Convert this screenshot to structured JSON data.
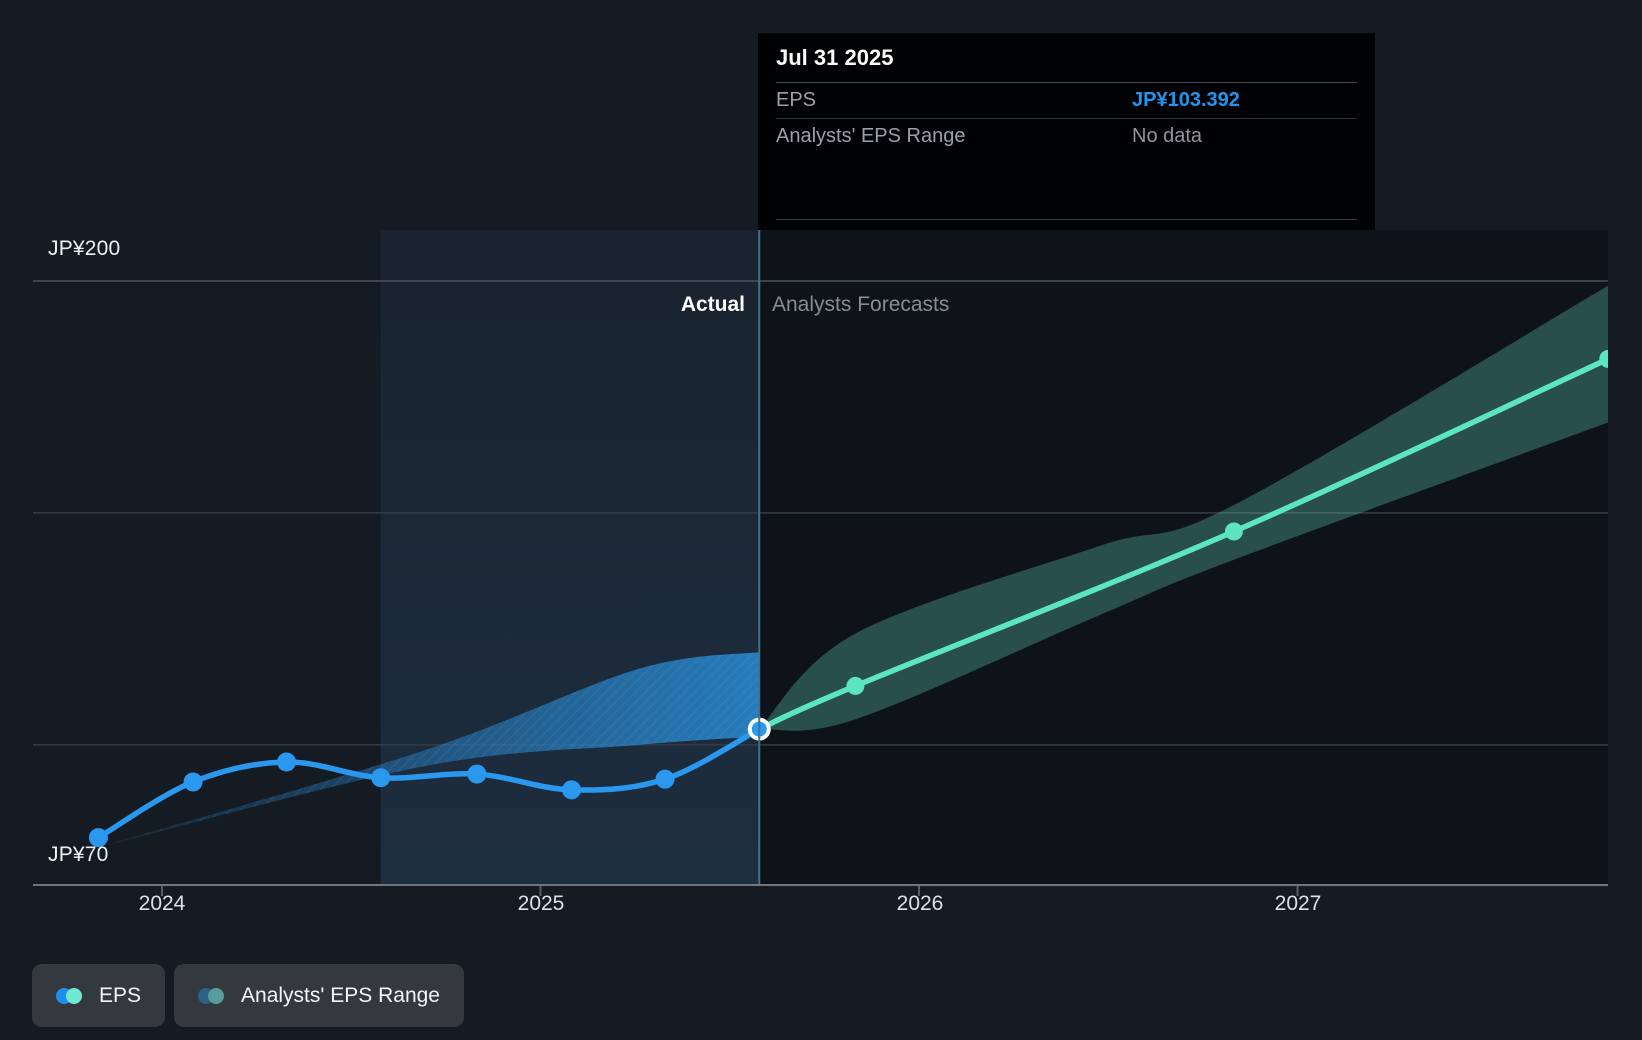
{
  "tooltip": {
    "date": "Jul 31 2025",
    "rows": [
      {
        "label": "EPS",
        "value": "JP¥103.392"
      },
      {
        "label": "Analysts' EPS Range",
        "value": "No data"
      }
    ]
  },
  "labels": {
    "y_max": "JP¥200",
    "y_min": "JP¥70",
    "actual": "Actual",
    "forecast": "Analysts Forecasts"
  },
  "x_axis": {
    "ticks": [
      "2024",
      "2025",
      "2026",
      "2027"
    ],
    "tick_values": [
      2024,
      2025,
      2026,
      2027
    ]
  },
  "y_axis": {
    "min": 70,
    "max": 200,
    "gridline_values": [
      100,
      150,
      200
    ]
  },
  "legend": [
    {
      "label": "EPS",
      "colors": [
        "#1F8FEA",
        "#6FE8D2"
      ]
    },
    {
      "label": "Analysts' EPS Range",
      "colors": [
        "#2D6187",
        "#579E9A"
      ]
    }
  ],
  "colors": {
    "background": "#151B23",
    "forecast_region": "#0E1319",
    "highlight_rgb": "70,140,200",
    "gridline": "#353D47",
    "gridline_top": "#4B535C",
    "axis_line": "#70767D",
    "tick": "#575E66",
    "divider": "#41718F",
    "eps_line": "#2B98F0",
    "forecast_line": "#5DE4C3",
    "actual_band_from": "rgba(38,118,188,0.16)",
    "actual_band_to": "rgba(42,145,220,0.80)",
    "band_hatch": "rgba(130,200,255,0.10)",
    "forecast_band": "rgba(88,178,160,0.38)"
  },
  "chart_data": {
    "type": "line",
    "title": "EPS actual vs analysts forecast (JP¥)",
    "x_unit": "year",
    "xlim": [
      2023.66,
      2027.82
    ],
    "ylim": [
      70,
      200
    ],
    "grid": "horizontal",
    "divider_x": 2025.578,
    "divider_label_left": "Actual",
    "divider_label_right": "Analysts Forecasts",
    "highlight_span": [
      2024.578,
      2025.578
    ],
    "series": [
      {
        "name": "EPS (actual)",
        "dates": [
          "Oct 31 2023",
          "Jan 31 2024",
          "Apr 30 2024",
          "Jul 31 2024",
          "Oct 31 2024",
          "Jan 31 2025",
          "Apr 30 2025",
          "Jul 31 2025"
        ],
        "x": [
          2023.832,
          2024.082,
          2024.329,
          2024.578,
          2024.832,
          2025.082,
          2025.329,
          2025.578
        ],
        "y": [
          80.0,
          92.0,
          96.3,
          92.9,
          93.7,
          90.3,
          92.6,
          103.392
        ]
      },
      {
        "name": "EPS (analysts forecast)",
        "dates": [
          "Jul 31 2025",
          "Oct 31 2025",
          "Oct 31 2026",
          "Oct 31 2027"
        ],
        "x": [
          2025.578,
          2025.832,
          2026.832,
          2027.821
        ],
        "y": [
          103.392,
          112.7,
          146.0,
          183.2
        ]
      }
    ],
    "bands": [
      {
        "name": "Actual EPS range band",
        "x": [
          2023.845,
          2024.7,
          2025.26,
          2025.578
        ],
        "top": [
          78.2,
          99.0,
          116.4,
          120.0
        ],
        "bottom": [
          78.2,
          95.5,
          100.0,
          101.8
        ]
      },
      {
        "name": "Analysts' EPS range band",
        "x": [
          2025.578,
          2025.832,
          2026.478,
          2026.832,
          2027.821
        ],
        "top": [
          103.4,
          124.0,
          142.9,
          151.7,
          199.0
        ],
        "bottom": [
          103.4,
          105.5,
          128.0,
          139.9,
          169.5
        ]
      }
    ]
  }
}
